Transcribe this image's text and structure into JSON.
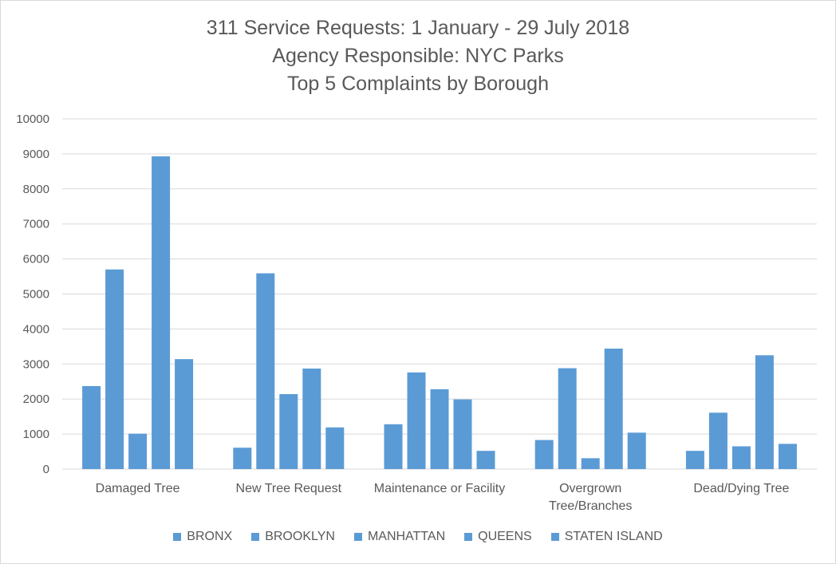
{
  "chart_data": {
    "type": "bar",
    "title_lines": [
      "311 Service Requests: 1 January - 29 July 2018",
      "Agency Responsible: NYC Parks",
      "Top 5 Complaints by Borough"
    ],
    "categories": [
      [
        "Damaged Tree"
      ],
      [
        "New Tree Request"
      ],
      [
        "Maintenance or Facility"
      ],
      [
        "Overgrown",
        "Tree/Branches"
      ],
      [
        "Dead/Dying Tree"
      ]
    ],
    "series": [
      {
        "name": "BRONX",
        "values": [
          2370,
          610,
          1280,
          830,
          520
        ]
      },
      {
        "name": "BROOKLYN",
        "values": [
          5700,
          5590,
          2760,
          2880,
          1610
        ]
      },
      {
        "name": "MANHATTAN",
        "values": [
          1010,
          2140,
          2280,
          310,
          650
        ]
      },
      {
        "name": "QUEENS",
        "values": [
          8930,
          2870,
          1990,
          3440,
          3250
        ]
      },
      {
        "name": "STATEN ISLAND",
        "values": [
          3140,
          1190,
          520,
          1040,
          720
        ]
      }
    ],
    "ylim": [
      0,
      10000
    ],
    "yticks": [
      "0",
      "1000",
      "2000",
      "3000",
      "4000",
      "5000",
      "6000",
      "7000",
      "8000",
      "9000",
      "10000"
    ],
    "bar_color": "#5b9bd5",
    "grid": true,
    "legend_position": "bottom"
  },
  "colors": {
    "gridline": "#d9d9d9",
    "text": "#595959"
  }
}
